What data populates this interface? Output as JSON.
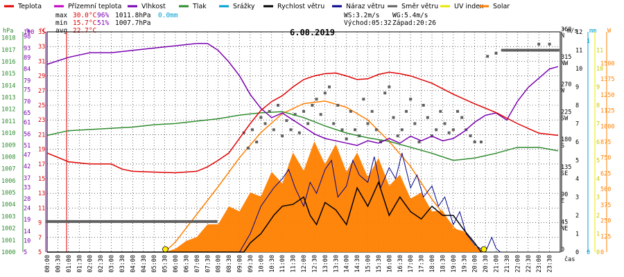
{
  "legend": [
    {
      "label": "Teplota",
      "color": "#e00000"
    },
    {
      "label": "Přízemní teplota",
      "color": "#c000c0"
    },
    {
      "label": "Vlhkost",
      "color": "#7a00b0"
    },
    {
      "label": "Tlak",
      "color": "#2e8b2e"
    },
    {
      "label": "Srážky",
      "color": "#00a0d0"
    },
    {
      "label": "Rychlost větru",
      "color": "#000000"
    },
    {
      "label": "Náraz větru",
      "color": "#00008b"
    },
    {
      "label": "Směr větru",
      "color": "#606060"
    },
    {
      "label": "UV index",
      "color": "#e8e800"
    },
    {
      "label": "Solar",
      "color": "#ff8000"
    }
  ],
  "stats": {
    "max_label": "max",
    "max_temp": "30.0°C",
    "max_hum": "96%",
    "max_press": "1011.8hPa",
    "max_rain": "0.0mm",
    "min_label": "min",
    "min_temp": "15.7°C",
    "min_hum": "51%",
    "min_press": "1007.7hPa",
    "avg_label": "avg",
    "avg_temp": "22.7°C",
    "ws": "WS:3.2m/s",
    "wg": "WG:5.4m/s",
    "sunrise": "Východ:05:32",
    "sunset": "Západ:20:26"
  },
  "date_title": "6.08.2019",
  "axis_units": {
    "hpa": "hPa",
    "pct": "%",
    "degc": "°C",
    "deg": "°",
    "ms": "m/s",
    "mm": "mm",
    "w": "W"
  },
  "xaxis_label": "čas",
  "colors": {
    "temp": "#e00000",
    "humidity": "#7a00b0",
    "pressure": "#2e8b2e",
    "rain": "#00a0d0",
    "wind": "#000000",
    "gust": "#00008b",
    "direction": "#606060",
    "uv": "#e8e800",
    "solar": "#ff8000",
    "solar_fill": "#ff8000",
    "grid": "#000000"
  },
  "chart_data": {
    "type": "line",
    "title": "6.08.2019",
    "x_ticks": [
      "00:00",
      "00:30",
      "01:00",
      "01:30",
      "02:00",
      "02:30",
      "03:00",
      "03:30",
      "04:00",
      "04:30",
      "05:00",
      "05:30",
      "06:00",
      "06:30",
      "07:00",
      "07:30",
      "08:00",
      "08:30",
      "09:00",
      "09:30",
      "10:00",
      "10:30",
      "11:00",
      "11:30",
      "12:00",
      "12:30",
      "13:00",
      "13:30",
      "14:00",
      "14:30",
      "15:00",
      "15:30",
      "16:00",
      "16:30",
      "17:00",
      "17:30",
      "18:00",
      "18:30",
      "19:00",
      "19:30",
      "20:00",
      "20:30",
      "21:00",
      "21:30",
      "22:00",
      "22:30",
      "23:00",
      "23:30"
    ],
    "axes": {
      "pressure": {
        "label": "hPa",
        "ticks": [
          1000,
          1001,
          1002,
          1003,
          1004,
          1005,
          1006,
          1007,
          1008,
          1009,
          1010,
          1011,
          1012,
          1013,
          1014,
          1015,
          1016,
          1017,
          1018
        ],
        "range": [
          1000,
          1018.5
        ]
      },
      "humidity": {
        "label": "%",
        "ticks": [
          5,
          10,
          14,
          19,
          24,
          28,
          33,
          37,
          42,
          47,
          51,
          56,
          61,
          65,
          70,
          75,
          79,
          84,
          89,
          93,
          98,
          100
        ],
        "range": [
          5,
          100
        ]
      },
      "temperature": {
        "label": "°C",
        "ticks": [
          5,
          7,
          9,
          11,
          13,
          15,
          17,
          19,
          21,
          23,
          25,
          27,
          29,
          31,
          33,
          35
        ],
        "range": [
          5,
          35
        ]
      },
      "direction": {
        "label": "°",
        "ticks": [
          {
            "v": 0,
            "t": "0"
          },
          {
            "v": 45,
            "t": "45 NE"
          },
          {
            "v": 90,
            "t": "90 E"
          },
          {
            "v": 135,
            "t": "135 SE"
          },
          {
            "v": 180,
            "t": "180 S"
          },
          {
            "v": 225,
            "t": "225 SW"
          },
          {
            "v": 270,
            "t": "270 W"
          },
          {
            "v": 315,
            "t": "315 NW"
          },
          {
            "v": 360,
            "t": "360 N"
          }
        ],
        "range": [
          0,
          360
        ]
      },
      "wind": {
        "label": "m/s",
        "ticks": [
          0,
          1,
          2,
          3,
          4,
          5,
          6,
          7,
          8,
          9,
          10,
          11,
          12
        ],
        "range": [
          0,
          12
        ]
      },
      "rain": {
        "label": "mm",
        "ticks": [
          0,
          1
        ],
        "range": [
          0,
          1
        ]
      },
      "uv": {
        "ticks": [
          0,
          1,
          2,
          3,
          4,
          5,
          6,
          7,
          8,
          9,
          10,
          11
        ],
        "range": [
          0,
          12
        ]
      },
      "solar": {
        "label": "W",
        "ticks": [
          0,
          125,
          250,
          375,
          500,
          625,
          750,
          875,
          1000,
          1125,
          1250,
          1375,
          1500
        ],
        "range": [
          0,
          1750
        ]
      }
    },
    "series": [
      {
        "name": "Teplota",
        "axis": "temperature",
        "x": [
          0,
          1,
          2,
          3,
          3.5,
          4,
          5,
          6,
          7,
          7.5,
          8,
          8.5,
          9,
          9.5,
          10,
          10.5,
          11,
          11.5,
          12,
          12.5,
          13,
          13.5,
          14,
          14.5,
          15,
          15.5,
          16,
          16.5,
          17,
          17.5,
          18,
          19,
          20,
          21,
          22,
          23,
          23.9
        ],
        "y": [
          18.5,
          17.3,
          17.0,
          17.0,
          16.3,
          16.0,
          15.9,
          15.8,
          16.0,
          16.6,
          17.5,
          18.5,
          20.5,
          22.5,
          24.3,
          25.5,
          26.3,
          27.5,
          28.5,
          29.0,
          29.3,
          29.4,
          29.0,
          28.5,
          28.6,
          29.2,
          29.5,
          29.3,
          29.0,
          28.5,
          28.0,
          26.5,
          25.2,
          24.0,
          22.5,
          21.2,
          20.9
        ]
      },
      {
        "name": "Vlhkost",
        "axis": "humidity",
        "x": [
          0,
          1,
          2,
          3,
          4,
          5,
          6,
          7,
          7.5,
          8,
          8.5,
          9,
          9.5,
          10,
          10.5,
          11,
          11.5,
          12,
          12.5,
          13,
          13.5,
          14,
          14.5,
          15,
          15.5,
          16,
          16.5,
          17,
          17.5,
          18,
          18.5,
          19,
          19.5,
          20,
          20.5,
          21,
          21.5,
          22,
          22.5,
          23,
          23.5,
          23.9
        ],
        "y": [
          86,
          89,
          91,
          91,
          92,
          93,
          94,
          95,
          95,
          92,
          87,
          81,
          73,
          67,
          63,
          65,
          62,
          59,
          56,
          54,
          53,
          52,
          51,
          53,
          52,
          54,
          52,
          55,
          53,
          55,
          53,
          54,
          57,
          61,
          64,
          65,
          62,
          70,
          76,
          80,
          84,
          85
        ]
      },
      {
        "name": "Tlak",
        "axis": "pressure",
        "x": [
          0,
          1,
          2,
          3,
          4,
          5,
          6,
          7,
          8,
          9,
          10,
          11,
          12,
          13,
          14,
          15,
          16,
          17,
          18,
          19,
          20,
          21,
          22,
          23,
          23.9
        ],
        "y": [
          1009.8,
          1010.2,
          1010.3,
          1010.4,
          1010.5,
          1010.7,
          1010.8,
          1011.0,
          1011.2,
          1011.5,
          1011.7,
          1011.8,
          1011.3,
          1010.6,
          1010.0,
          1009.6,
          1009.3,
          1008.8,
          1008.3,
          1007.7,
          1007.9,
          1008.3,
          1008.8,
          1008.8,
          1008.5
        ]
      },
      {
        "name": "Rychlost větru",
        "axis": "wind",
        "x": [
          0,
          9.2,
          9.5,
          10,
          10.3,
          10.6,
          11,
          11.5,
          12,
          12.3,
          12.6,
          13,
          13.5,
          14,
          14.5,
          15,
          15.5,
          16,
          16.5,
          17,
          17.5,
          18,
          18.5,
          19,
          19.5,
          20,
          20.3
        ],
        "y": [
          0,
          0,
          0.5,
          1.0,
          1.5,
          2.0,
          2.5,
          2.6,
          3.0,
          2.0,
          1.5,
          2.7,
          2.3,
          1.5,
          3.5,
          2.5,
          3.8,
          2.0,
          3.0,
          2.2,
          1.8,
          2.5,
          2.0,
          2.0,
          1.2,
          0.5,
          0
        ]
      },
      {
        "name": "Náraz větru",
        "axis": "wind",
        "x": [
          9,
          9.5,
          10,
          10.3,
          10.6,
          11,
          11.3,
          11.6,
          12,
          12.3,
          12.6,
          13,
          13.3,
          13.6,
          14,
          14.3,
          14.6,
          15,
          15.3,
          15.6,
          16,
          16.3,
          16.6,
          17,
          17.3,
          17.6,
          18,
          18.3,
          18.6,
          19,
          19.3,
          19.6,
          20,
          20.5,
          20.8,
          21,
          21.2
        ],
        "y": [
          0,
          1,
          2.5,
          3.0,
          3.5,
          4.0,
          4.5,
          3.5,
          2.5,
          3.8,
          3.2,
          4.5,
          5.0,
          3.0,
          3.6,
          5.0,
          4.2,
          3.8,
          5.2,
          3.5,
          4.6,
          4.0,
          5.4,
          3.5,
          4.2,
          3.0,
          3.6,
          2.5,
          3.0,
          1.5,
          2.2,
          1.0,
          0.4,
          0,
          0.8,
          0.2,
          0
        ]
      },
      {
        "name": "Solar",
        "axis": "solar",
        "x": [
          5.5,
          6,
          7,
          8,
          9,
          10,
          11,
          12,
          13,
          14,
          15,
          16,
          17,
          18,
          19,
          20,
          20.4
        ],
        "y": [
          0,
          80,
          300,
          520,
          750,
          950,
          1100,
          1180,
          1200,
          1150,
          1050,
          880,
          680,
          420,
          200,
          40,
          0
        ]
      },
      {
        "name": "Solar-measured",
        "axis": "solar",
        "x": [
          5.5,
          6,
          6.5,
          7,
          7.5,
          8,
          8.5,
          9,
          9.5,
          10,
          10.5,
          11,
          11.5,
          12,
          12.5,
          13,
          13.5,
          14,
          14.5,
          15,
          15.5,
          16,
          16.5,
          17,
          17.5,
          18,
          18.5,
          19,
          19.5,
          20,
          20.4
        ],
        "y": [
          0,
          30,
          80,
          140,
          200,
          260,
          330,
          380,
          430,
          520,
          580,
          640,
          720,
          760,
          800,
          820,
          780,
          750,
          720,
          700,
          680,
          620,
          560,
          500,
          430,
          380,
          300,
          220,
          150,
          60,
          0
        ]
      }
    ],
    "direction_points": {
      "x": [
        0,
        1,
        2,
        3,
        4,
        5,
        6,
        7,
        7.9,
        9.2,
        9.4,
        9.6,
        9.8,
        10.0,
        10.2,
        10.4,
        10.6,
        10.8,
        11.0,
        11.2,
        11.4,
        11.6,
        11.8,
        12.0,
        12.2,
        12.4,
        12.6,
        12.8,
        13.0,
        13.2,
        13.4,
        13.6,
        13.8,
        14.0,
        14.2,
        14.4,
        14.6,
        14.8,
        15.0,
        15.2,
        15.4,
        15.6,
        15.8,
        16.0,
        16.2,
        16.4,
        16.6,
        16.8,
        17.0,
        17.2,
        17.4,
        17.6,
        17.8,
        18.0,
        18.2,
        18.4,
        18.6,
        18.8,
        19.0,
        19.2,
        19.4,
        19.6,
        19.8,
        20.0,
        20.3,
        20.6,
        21.0,
        21.3,
        21.6,
        22.0,
        22.5,
        23.0,
        23.5,
        23.9
      ],
      "y": [
        50,
        50,
        50,
        50,
        50,
        50,
        50,
        50,
        50,
        195,
        170,
        200,
        180,
        220,
        210,
        230,
        200,
        240,
        190,
        215,
        200,
        225,
        195,
        230,
        210,
        240,
        250,
        225,
        260,
        270,
        210,
        240,
        200,
        185,
        230,
        200,
        190,
        250,
        210,
        230,
        200,
        180,
        260,
        270,
        220,
        190,
        200,
        230,
        250,
        210,
        180,
        240,
        220,
        190,
        200,
        230,
        210,
        195,
        200,
        230,
        220,
        200,
        190,
        180,
        180,
        320,
        325,
        330,
        330,
        330,
        330,
        340,
        340,
        330
      ]
    },
    "markers": [
      {
        "label": "sunrise",
        "x": 5.53
      },
      {
        "label": "sunset",
        "x": 20.43
      }
    ]
  }
}
